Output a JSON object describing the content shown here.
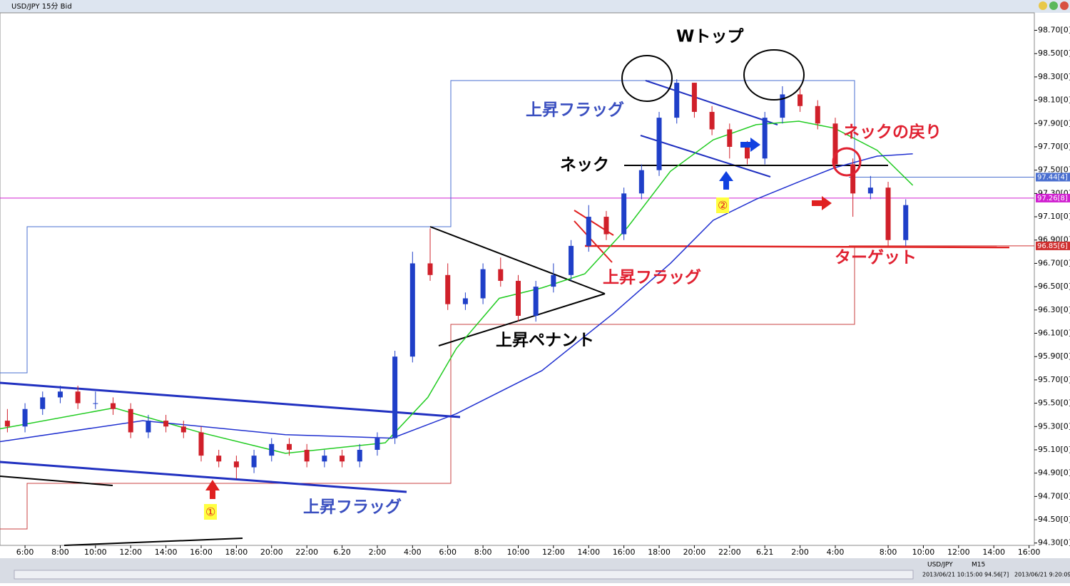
{
  "window": {
    "title": "USD/JPY 15分 Bid",
    "symbol": "USD/JPY",
    "timeframe": "M15",
    "status_time": "2013/06/21 10:15:00",
    "status_price": "94.56[7]",
    "clock": "2013/06/21 9:20:09"
  },
  "chart_data": {
    "type": "candlestick",
    "up_color": "#1f3fc8",
    "down_color": "#d0202a",
    "xlim": [
      -1.42,
      57.3
    ],
    "ylim": [
      94.28,
      98.85
    ],
    "xticks": [
      {
        "value": 0,
        "label": "6:00"
      },
      {
        "value": 2,
        "label": "8:00"
      },
      {
        "value": 4,
        "label": "10:00"
      },
      {
        "value": 6,
        "label": "12:00"
      },
      {
        "value": 8,
        "label": "14:00"
      },
      {
        "value": 10,
        "label": "16:00"
      },
      {
        "value": 12,
        "label": "18:00"
      },
      {
        "value": 14,
        "label": "20:00"
      },
      {
        "value": 16,
        "label": "22:00"
      },
      {
        "value": 18,
        "label": "6.20"
      },
      {
        "value": 20,
        "label": "2:00"
      },
      {
        "value": 22,
        "label": "4:00"
      },
      {
        "value": 24,
        "label": "6:00"
      },
      {
        "value": 26,
        "label": "8:00"
      },
      {
        "value": 28,
        "label": "10:00"
      },
      {
        "value": 30,
        "label": "12:00"
      },
      {
        "value": 32,
        "label": "14:00"
      },
      {
        "value": 34,
        "label": "16:00"
      },
      {
        "value": 36,
        "label": "18:00"
      },
      {
        "value": 38,
        "label": "20:00"
      },
      {
        "value": 40,
        "label": "22:00"
      },
      {
        "value": 42,
        "label": "6.21"
      },
      {
        "value": 44,
        "label": "2:00"
      },
      {
        "value": 46,
        "label": "4:00"
      },
      {
        "value": 49,
        "label": "8:00"
      },
      {
        "value": 51,
        "label": "10:00"
      },
      {
        "value": 53,
        "label": "12:00"
      },
      {
        "value": 55,
        "label": "14:00"
      },
      {
        "value": 57,
        "label": "16:00"
      }
    ],
    "yticks": [
      {
        "value": 98.7,
        "label": "98.70[0]"
      },
      {
        "value": 98.5,
        "label": "98.50[0]"
      },
      {
        "value": 98.3,
        "label": "98.30[0]"
      },
      {
        "value": 98.1,
        "label": "98.10[0]"
      },
      {
        "value": 97.9,
        "label": "97.90[0]"
      },
      {
        "value": 97.7,
        "label": "97.70[0]"
      },
      {
        "value": 97.5,
        "label": "97.50[0]"
      },
      {
        "value": 97.3,
        "label": "97.30[0]"
      },
      {
        "value": 97.1,
        "label": "97.10[0]"
      },
      {
        "value": 96.9,
        "label": "96.90[0]"
      },
      {
        "value": 96.7,
        "label": "96.70[0]"
      },
      {
        "value": 96.5,
        "label": "96.50[0]"
      },
      {
        "value": 96.3,
        "label": "96.30[0]"
      },
      {
        "value": 96.1,
        "label": "96.10[0]"
      },
      {
        "value": 95.9,
        "label": "95.90[0]"
      },
      {
        "value": 95.7,
        "label": "95.70[0]"
      },
      {
        "value": 95.5,
        "label": "95.50[0]"
      },
      {
        "value": 95.3,
        "label": "95.30[0]"
      },
      {
        "value": 95.1,
        "label": "95.10[0]"
      },
      {
        "value": 94.9,
        "label": "94.90[0]"
      },
      {
        "value": 94.7,
        "label": "94.70[0]"
      },
      {
        "value": 94.5,
        "label": "94.50[0]"
      },
      {
        "value": 94.3,
        "label": "94.30[0]"
      }
    ],
    "x": [
      -1,
      0,
      1,
      2,
      3,
      4,
      5,
      6,
      7,
      8,
      9,
      10,
      11,
      12,
      13,
      14,
      15,
      16,
      17,
      18,
      19,
      20,
      21,
      22,
      23,
      24,
      25,
      26,
      27,
      28,
      29,
      30,
      31,
      32,
      33,
      34,
      35,
      36,
      37,
      38,
      39,
      40,
      41,
      42,
      43,
      44,
      45,
      46,
      47,
      48,
      49,
      50
    ],
    "open": [
      95.35,
      95.3,
      95.45,
      95.55,
      95.6,
      95.5,
      95.5,
      95.45,
      95.25,
      95.35,
      95.3,
      95.25,
      95.05,
      95.0,
      94.95,
      95.05,
      95.15,
      95.1,
      95.0,
      95.05,
      95.0,
      95.1,
      95.2,
      95.9,
      96.7,
      96.6,
      96.35,
      96.4,
      96.65,
      96.55,
      96.25,
      96.5,
      96.6,
      96.85,
      97.1,
      96.95,
      97.3,
      97.5,
      97.95,
      98.25,
      98.0,
      97.85,
      97.7,
      97.6,
      97.95,
      98.15,
      98.05,
      97.9,
      97.55,
      97.3,
      97.35,
      96.9
    ],
    "high": [
      95.45,
      95.5,
      95.6,
      95.65,
      95.65,
      95.6,
      95.55,
      95.5,
      95.4,
      95.4,
      95.35,
      95.3,
      95.1,
      95.05,
      95.1,
      95.2,
      95.2,
      95.15,
      95.1,
      95.1,
      95.15,
      95.25,
      95.95,
      96.8,
      97.0,
      96.7,
      96.45,
      96.7,
      96.75,
      96.6,
      96.55,
      96.7,
      96.9,
      97.2,
      97.15,
      97.35,
      97.55,
      98.0,
      98.28,
      98.25,
      98.05,
      97.9,
      97.75,
      98.0,
      98.22,
      98.2,
      98.1,
      97.95,
      97.6,
      97.45,
      97.4,
      97.25
    ],
    "low": [
      95.25,
      95.25,
      95.4,
      95.5,
      95.45,
      95.45,
      95.4,
      95.2,
      95.2,
      95.25,
      95.2,
      95.0,
      94.95,
      94.85,
      94.9,
      95.0,
      95.05,
      94.95,
      94.95,
      94.95,
      94.95,
      95.05,
      95.15,
      95.85,
      96.55,
      96.3,
      96.3,
      96.35,
      96.5,
      96.2,
      96.2,
      96.45,
      96.55,
      96.8,
      96.9,
      96.9,
      97.25,
      97.45,
      97.9,
      97.95,
      97.8,
      97.6,
      97.55,
      97.55,
      97.9,
      98.0,
      97.85,
      97.5,
      97.1,
      97.25,
      96.85,
      96.85
    ],
    "close": [
      95.3,
      95.45,
      95.55,
      95.6,
      95.5,
      95.5,
      95.45,
      95.25,
      95.35,
      95.3,
      95.25,
      95.05,
      95.0,
      94.95,
      95.05,
      95.15,
      95.1,
      95.0,
      95.05,
      95.0,
      95.1,
      95.2,
      95.9,
      96.7,
      96.6,
      96.35,
      96.4,
      96.65,
      96.55,
      96.25,
      96.5,
      96.6,
      96.85,
      97.1,
      96.95,
      97.3,
      97.5,
      97.95,
      98.25,
      98.0,
      97.85,
      97.7,
      97.6,
      97.95,
      98.15,
      98.05,
      97.9,
      97.55,
      97.3,
      97.35,
      96.9,
      97.2
    ],
    "series": [
      {
        "color": "#22cc22",
        "x": [
          -1.42,
          5.06,
          9.92,
          14.78,
          20.45,
          22.87,
          24.49,
          26.92,
          29.35,
          31.78,
          34.21,
          36.64,
          39.07,
          41.5,
          43.93,
          45.95,
          48.38,
          50.4
        ],
        "values": [
          95.28,
          95.46,
          95.25,
          95.07,
          95.16,
          95.55,
          95.97,
          96.4,
          96.49,
          96.61,
          97.01,
          97.49,
          97.76,
          97.89,
          97.92,
          97.86,
          97.67,
          97.37
        ]
      },
      {
        "color": "#2030d0",
        "x": [
          -1.42,
          6.68,
          14.78,
          20.85,
          24.49,
          29.35,
          33.4,
          36.64,
          39.07,
          41.5,
          43.93,
          45.95,
          48.38,
          50.4
        ],
        "values": [
          95.17,
          95.35,
          95.23,
          95.2,
          95.41,
          95.78,
          96.27,
          96.7,
          97.07,
          97.25,
          97.4,
          97.52,
          97.62,
          97.64
        ]
      }
    ],
    "price_lines": [
      {
        "value": 97.44,
        "label": "97.44[4]",
        "color": "#4a6fd0"
      },
      {
        "value": 97.26,
        "label": "97.26[8]",
        "color": "#d020d0"
      },
      {
        "value": 96.85,
        "label": "96.85[6]",
        "color": "#d03030"
      }
    ],
    "annotations": [
      "Wトップ",
      "上昇フラッグ",
      "ネック",
      "ネックの戻り",
      "上昇フラッグ",
      "上昇ペナント",
      "ターゲット",
      "上昇フラッグ",
      "①",
      "②"
    ]
  }
}
